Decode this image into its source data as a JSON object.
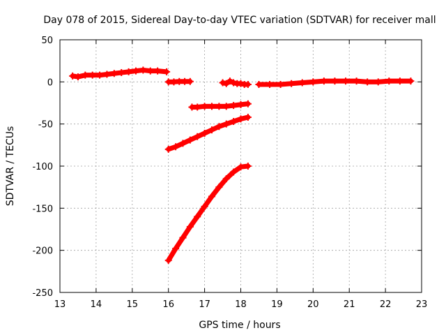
{
  "chart_data": {
    "type": "scatter",
    "title": "Day 078 of 2015, Sidereal Day-to-day VTEC variation (SDTVAR) for receiver mall",
    "xlabel": "GPS time / hours",
    "ylabel": "SDTVAR / TECUs",
    "xlim": [
      13,
      23
    ],
    "ylim": [
      -250,
      50
    ],
    "xticks": [
      13,
      14,
      15,
      16,
      17,
      18,
      19,
      20,
      21,
      22,
      23
    ],
    "yticks": [
      -250,
      -200,
      -150,
      -100,
      -50,
      0,
      50
    ],
    "grid": true,
    "marker_color": "#ff0000",
    "series": [
      {
        "x": [
          13.35,
          13.5,
          13.7,
          13.9,
          14.1,
          14.3,
          14.5,
          14.7,
          14.9,
          15.1,
          15.3,
          15.5,
          15.7,
          15.95
        ],
        "y": [
          7,
          6,
          8,
          8,
          8,
          9,
          10,
          11,
          12,
          13,
          14,
          13,
          13,
          12
        ]
      },
      {
        "x": [
          16.0,
          16.15,
          16.3,
          16.45,
          16.6
        ],
        "y": [
          0,
          0,
          0.5,
          0.5,
          0.5
        ]
      },
      {
        "x": [
          16.65,
          16.8,
          17.0,
          17.2,
          17.4,
          17.6,
          17.8,
          18.0,
          18.2
        ],
        "y": [
          -30,
          -30,
          -29,
          -29,
          -29,
          -29,
          -28,
          -27,
          -26
        ]
      },
      {
        "x": [
          17.5,
          17.6,
          17.7,
          17.8,
          17.9,
          18.0,
          18.1,
          18.2
        ],
        "y": [
          -1,
          -2,
          1,
          -1,
          -2,
          -2,
          -3,
          -3
        ]
      },
      {
        "x": [
          16.0,
          16.2,
          16.4,
          16.6,
          16.8,
          17.0,
          17.2,
          17.4,
          17.6,
          17.8,
          18.0,
          18.2
        ],
        "y": [
          -80,
          -77,
          -73,
          -69,
          -65,
          -61,
          -57,
          -53,
          -50,
          -47,
          -44,
          -42
        ]
      },
      {
        "x": [
          16.0,
          16.2,
          16.4,
          16.6,
          16.8,
          17.0,
          17.2,
          17.4,
          17.6,
          17.8,
          18.0,
          18.2
        ],
        "y": [
          -212,
          -198,
          -185,
          -172,
          -160,
          -148,
          -136,
          -125,
          -115,
          -107,
          -101,
          -100
        ]
      },
      {
        "x": [
          18.5,
          18.8,
          19.1,
          19.4,
          19.7,
          20.0,
          20.3,
          20.6,
          20.9,
          21.2,
          21.5,
          21.8,
          22.1,
          22.4,
          22.7
        ],
        "y": [
          -3,
          -3,
          -3,
          -2,
          -1,
          0,
          1,
          1,
          1,
          1,
          0,
          0,
          1,
          1,
          1
        ]
      }
    ]
  }
}
